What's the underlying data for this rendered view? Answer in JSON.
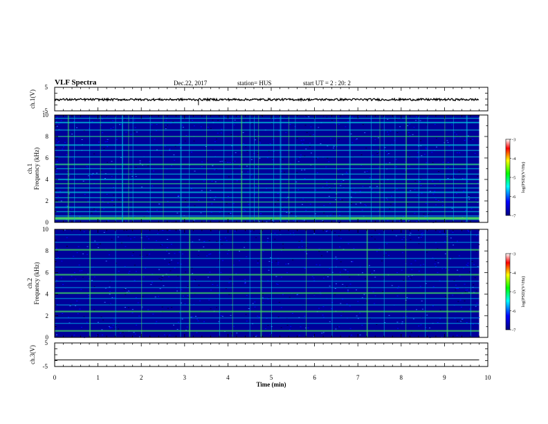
{
  "header": {
    "title": "VLF Spectra",
    "date": "Dec.22, 2017",
    "station": "station= HUS",
    "start": "start  UT =   2 : 20: 2"
  },
  "colorbar": {
    "label": "log(PSD)(V²/Hz)",
    "ticks": [
      "-3",
      "-4",
      "-5",
      "-6",
      "-7"
    ],
    "range": [
      -7,
      -3
    ]
  },
  "chart_data": [
    {
      "type": "line",
      "ylabel": "ch.1(V)",
      "ylim": [
        -5,
        5
      ],
      "yticks": [
        "5",
        "-5"
      ],
      "xlim": [
        0,
        10
      ],
      "description_level": -0.2
    },
    {
      "type": "heatmap",
      "ylabel": "ch.1\nFrequency (kHz)",
      "ylabel_line1": "ch.1",
      "ylabel_line2": "Frequency (kHz)",
      "ylim": [
        0,
        10
      ],
      "yticks": [
        "0",
        "2",
        "4",
        "6",
        "8",
        "10"
      ],
      "xlim": [
        0,
        10
      ],
      "data_end": 9.8,
      "colorbar_range": [
        -7,
        -3
      ]
    },
    {
      "type": "heatmap",
      "ylabel_line1": "ch.2",
      "ylabel_line2": "Frequency (kHz)",
      "ylim": [
        0,
        10
      ],
      "yticks": [
        "0",
        "2",
        "4",
        "6",
        "8",
        "10"
      ],
      "xlim": [
        0,
        10
      ],
      "data_end": 9.8,
      "colorbar_range": [
        -7,
        -3
      ]
    },
    {
      "type": "line",
      "ylabel": "ch.3(V)",
      "ylim": [
        -5,
        5
      ],
      "yticks": [
        "5",
        "-5"
      ],
      "xlim": [
        0,
        10
      ],
      "level": -2.2
    }
  ],
  "xaxis": {
    "label": "Time (min)",
    "ticks": [
      "0",
      "1",
      "2",
      "3",
      "4",
      "5",
      "6",
      "7",
      "8",
      "9",
      "10"
    ]
  },
  "colors": {
    "bg": "#00009a",
    "band": "#00c8c8",
    "line": "#40e060"
  }
}
